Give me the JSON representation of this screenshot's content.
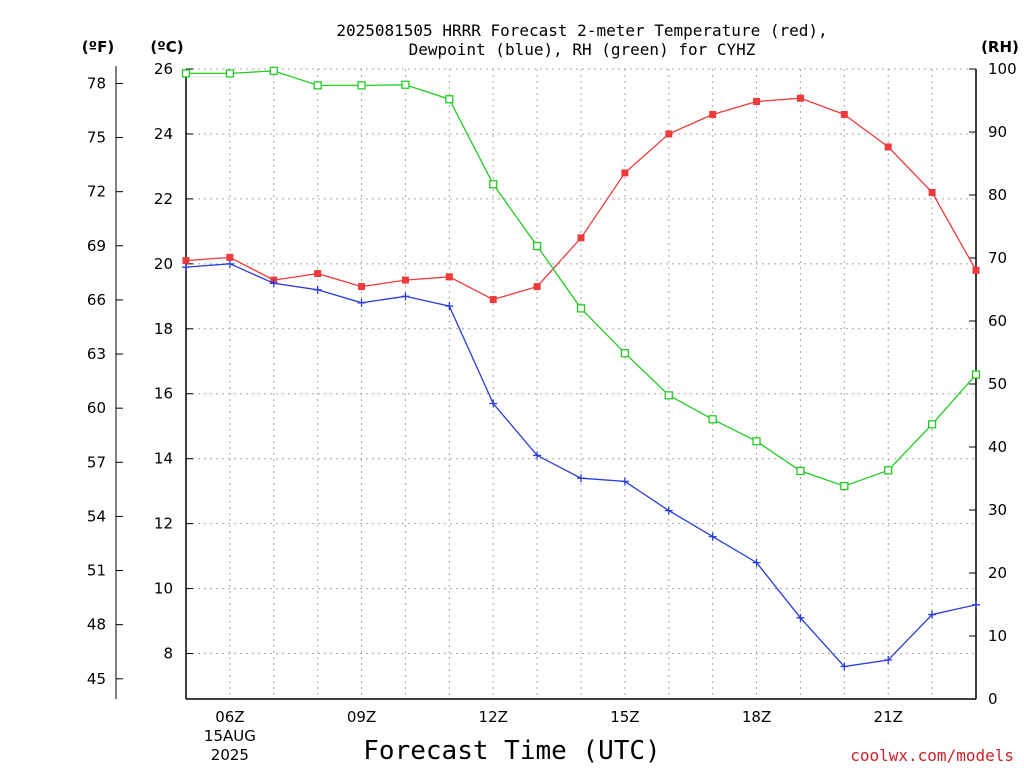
{
  "chart_data": {
    "type": "line",
    "title_line1": "2025081505 HRRR Forecast 2-meter Temperature (red),",
    "title_line2": "Dewpoint (blue), RH (green) for CYHZ",
    "xlabel": "Forecast Time (UTC)",
    "credit": "coolwx.com/models",
    "units": {
      "left_f": "(ºF)",
      "left_c": "(ºC)",
      "right_rh": "(RH)"
    },
    "x_tick_labels": [
      "06Z",
      "09Z",
      "12Z",
      "15Z",
      "18Z",
      "21Z"
    ],
    "x_date_label": [
      "15AUG",
      "2025"
    ],
    "x_hours": [
      5,
      6,
      7,
      8,
      9,
      10,
      11,
      12,
      13,
      14,
      15,
      16,
      17,
      18,
      19,
      20,
      21,
      22,
      23
    ],
    "xlim": [
      5,
      23
    ],
    "celsius_ticks": [
      "8",
      "10",
      "12",
      "14",
      "16",
      "18",
      "20",
      "22",
      "24",
      "26"
    ],
    "fahrenheit_ticks": [
      "45",
      "48",
      "51",
      "54",
      "57",
      "60",
      "63",
      "66",
      "69",
      "72",
      "75",
      "78"
    ],
    "rh_ticks": [
      "0",
      "10",
      "20",
      "30",
      "40",
      "50",
      "60",
      "70",
      "80",
      "90",
      "100"
    ],
    "ylim_c": [
      6.6,
      26
    ],
    "ylim_rh": [
      0,
      100
    ],
    "grid": true,
    "series": [
      {
        "name": "Temperature",
        "color": "#ee3a3a",
        "marker": "filled-square",
        "axis": "celsius",
        "values": [
          20.1,
          20.2,
          19.5,
          19.7,
          19.3,
          19.5,
          19.6,
          18.9,
          19.3,
          20.8,
          22.8,
          24.0,
          24.6,
          25.0,
          25.1,
          24.6,
          23.6,
          22.2,
          19.8
        ]
      },
      {
        "name": "Dewpoint",
        "color": "#2a3cdc",
        "marker": "plus",
        "axis": "celsius",
        "values": [
          19.9,
          20.0,
          19.4,
          19.2,
          18.8,
          19.0,
          18.7,
          15.7,
          14.1,
          13.4,
          13.3,
          12.4,
          11.6,
          10.8,
          9.1,
          7.6,
          7.8,
          9.2,
          9.5
        ]
      },
      {
        "name": "RH",
        "color": "#22cc22",
        "marker": "open-square",
        "axis": "rh",
        "values": [
          99.3,
          99.3,
          99.7,
          97.4,
          97.4,
          97.5,
          95.2,
          81.7,
          71.9,
          62.0,
          54.9,
          48.2,
          44.4,
          40.9,
          36.2,
          33.8,
          36.3,
          43.6,
          51.5
        ]
      }
    ]
  }
}
